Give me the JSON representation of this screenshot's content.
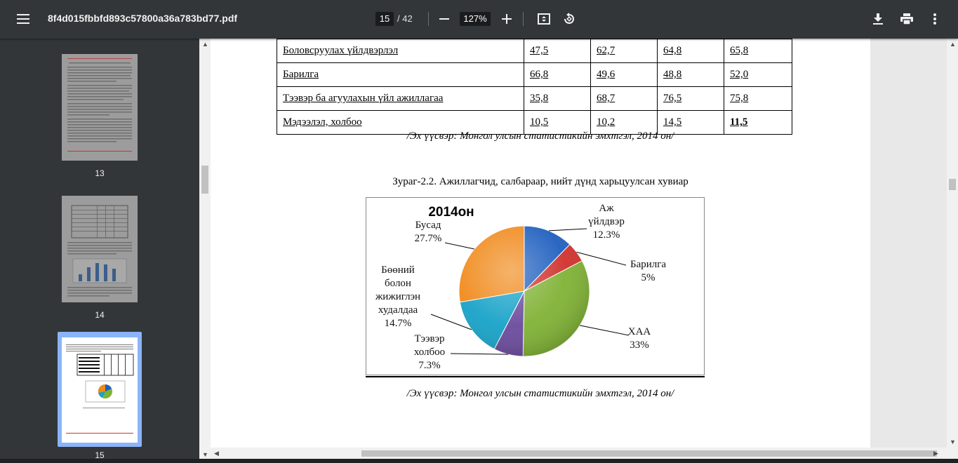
{
  "toolbar": {
    "title": "8f4d015fbbfd893c57800a36a783bd77.pdf",
    "current_page": "15",
    "total_pages": "/ 42",
    "zoom": "127%"
  },
  "sidebar": {
    "thumbnails": [
      {
        "page": "13"
      },
      {
        "page": "14"
      },
      {
        "page": "15",
        "selected": true
      }
    ]
  },
  "table": {
    "rows": [
      {
        "name": "Боловсруулах үйлдвэрлэл",
        "values": [
          "47,5",
          "62,7",
          "64,8",
          "65,8"
        ]
      },
      {
        "name": "Барилга",
        "values": [
          "66,8",
          "49,6",
          "48,8",
          "52,0"
        ]
      },
      {
        "name": "Тээвэр ба агуулахын үйл ажиллагаа",
        "values": [
          "35,8",
          "68,7",
          "76,5",
          "75,8"
        ]
      },
      {
        "name": "Мэдээлэл, холбоо",
        "values": [
          "10,5",
          "10,2",
          "14,5",
          "11,5"
        ]
      }
    ],
    "source": "/Эх үүсвэр: Монгол улсын статистикийн эмхтгэл, 2014 он/"
  },
  "figure": {
    "caption": "Зураг-2.2. Ажиллагчид, салбараар, нийт дүнд харьцуулсан хувиар",
    "source": "/Эх үүсвэр: Монгол улсын статистикийн эмхтгэл, 2014 он/"
  },
  "chart_data": {
    "type": "pie",
    "title": "2014он",
    "slices": [
      {
        "label": "Аж үйлдвэр",
        "label_lines": [
          "Аж",
          "үйлдвэр"
        ],
        "value": 12.3,
        "display": "12.3%",
        "color": "#1f5fbf"
      },
      {
        "label": "Барилга",
        "label_lines": [
          "Барилга"
        ],
        "value": 5,
        "display": "5%",
        "color": "#d0312d"
      },
      {
        "label": "ХАА",
        "label_lines": [
          "ХАА"
        ],
        "value": 33,
        "display": "33%",
        "color": "#7fb234"
      },
      {
        "label": "Тээвэр холбоо",
        "label_lines": [
          "Тээвэр",
          "холбоо"
        ],
        "value": 7.3,
        "display": "7.3%",
        "color": "#6a4a9c"
      },
      {
        "label": "Бөөний болон жижиглэн худалдаа",
        "label_lines": [
          "Бөөний",
          "болон",
          "жижиглэн",
          "худалдаа"
        ],
        "value": 14.7,
        "display": "14.7%",
        "color": "#17a2c8"
      },
      {
        "label": "Бусад",
        "label_lines": [
          "Бусад"
        ],
        "value": 27.7,
        "display": "27.7%",
        "color": "#f08a1c"
      }
    ]
  }
}
